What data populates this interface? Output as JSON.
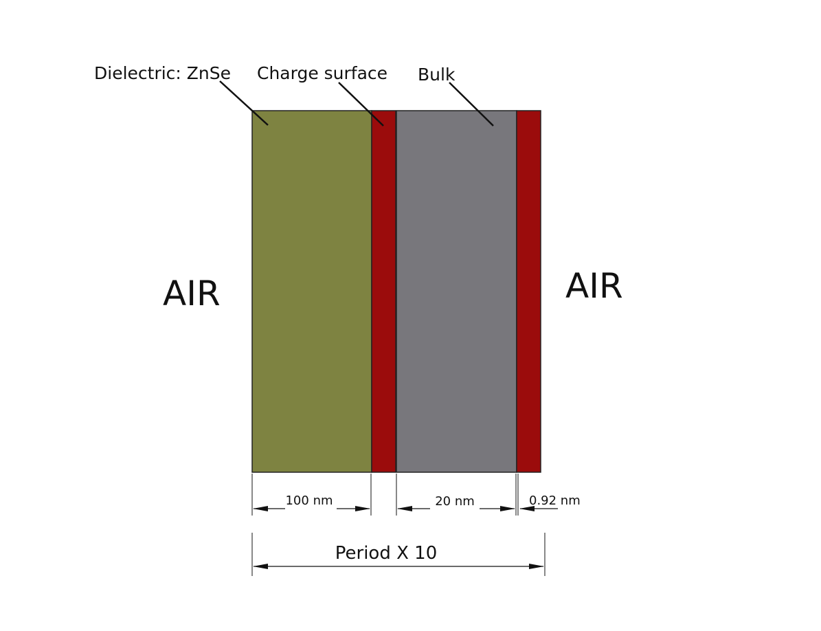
{
  "labels": {
    "dielectric": "Dielectric: ZnSe",
    "charge_surface": "Charge surface",
    "bulk": "Bulk",
    "air_left": "AIR",
    "air_right": "AIR"
  },
  "layers": [
    {
      "name": "Dielectric: ZnSe",
      "color": "#7e8341"
    },
    {
      "name": "Charge surface",
      "color": "#9b0c0c"
    },
    {
      "name": "Bulk",
      "color": "#78777c"
    },
    {
      "name": "Charge surface",
      "color": "#9b0c0c"
    }
  ],
  "dimensions": {
    "dielectric": "100 nm",
    "bulk": "20 nm",
    "charge_surface": "0.92 nm",
    "period": "Period X 10"
  }
}
